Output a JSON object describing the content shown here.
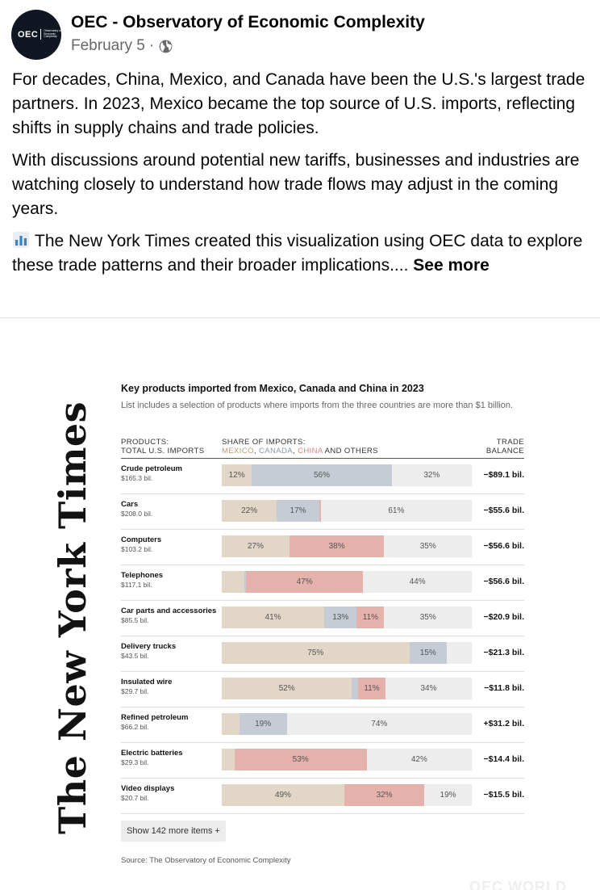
{
  "post": {
    "page_name": "OEC - Observatory of Economic Complexity",
    "date": "February 5",
    "separator": "·",
    "avatar_logo": "OEC",
    "avatar_tagline": "Observatory of Economic Complexity",
    "paragraphs": [
      "For decades, China, Mexico, and Canada have been the U.S.'s largest trade partners. In 2023, Mexico became the top source of U.S. imports, reflecting shifts in supply chains and trade policies.",
      "With discussions around potential new tariffs, businesses and industries are watching closely to understand how trade flows may adjust in the coming years."
    ],
    "third_paragraph": "The New York Times created this visualization using OEC data to explore these trade patterns and their broader implications....",
    "see_more": "See more",
    "icons": {
      "audience": "globe-icon",
      "emoji": "bar-chart-emoji-icon"
    }
  },
  "image": {
    "masthead": "The New York Times",
    "watermark": "OEC WORLD",
    "chart_title": "Key products imported from Mexico, Canada and China in 2023",
    "chart_subtitle": "List includes a selection of products where imports from the three countries are more than $1 billion.",
    "head_products_1": "PRODUCTS:",
    "head_products_2": "TOTAL U.S. IMPORTS",
    "head_share_1": "SHARE OF IMPORTS:",
    "legend_mexico": "MEXICO",
    "legend_comma1": ", ",
    "legend_canada": "CANADA",
    "legend_comma2": ", ",
    "legend_china": "CHINA",
    "legend_others": " AND OTHERS",
    "head_balance_1": "TRADE",
    "head_balance_2": "BALANCE",
    "show_more": "Show 142 more items +",
    "source": "Source: The Observatory of Economic Complexity"
  },
  "colors": {
    "mexico": "#e2d6c6",
    "canada": "#c5ccd5",
    "china": "#e5b1ab",
    "others": "#ededed"
  },
  "chart_data": {
    "type": "bar",
    "stacked": true,
    "series_order": [
      "Mexico",
      "Canada",
      "China",
      "Others"
    ],
    "rows": [
      {
        "name": "Crude petroleum",
        "total": "$165.3 bil.",
        "shares": [
          12,
          56,
          0,
          32
        ],
        "labels": [
          "12%",
          "56%",
          "",
          "32%"
        ],
        "balance": "−$89.1 bil."
      },
      {
        "name": "Cars",
        "total": "$208.0 bil.",
        "shares": [
          22,
          17,
          0.6,
          60.4
        ],
        "labels": [
          "22%",
          "17%",
          "",
          "61%"
        ],
        "balance": "−$55.6 bil."
      },
      {
        "name": "Computers",
        "total": "$103.2 bil.",
        "shares": [
          27,
          0,
          38,
          35
        ],
        "labels": [
          "27%",
          "",
          "38%",
          "35%"
        ],
        "balance": "−$56.6 bil."
      },
      {
        "name": "Telephones",
        "total": "$117.1 bil.",
        "shares": [
          9,
          0.6,
          47,
          43.4
        ],
        "labels": [
          "",
          "",
          "47%",
          "44%"
        ],
        "balance": "−$56.6 bil."
      },
      {
        "name": "Car parts and accessories",
        "total": "$85.5 bil.",
        "shares": [
          41,
          13,
          11,
          35
        ],
        "labels": [
          "41%",
          "13%",
          "11%",
          "35%"
        ],
        "balance": "−$20.9 bil."
      },
      {
        "name": "Delivery trucks",
        "total": "$43.5 bil.",
        "shares": [
          75,
          15,
          0,
          10
        ],
        "labels": [
          "75%",
          "15%",
          "",
          ""
        ],
        "balance": "−$21.3 bil."
      },
      {
        "name": "Insulated wire",
        "total": "$29.7 bil.",
        "shares": [
          52,
          2.5,
          11,
          34.5
        ],
        "labels": [
          "52%",
          "",
          "11%",
          "34%"
        ],
        "balance": "−$11.8 bil."
      },
      {
        "name": "Refined petroleum",
        "total": "$66.2 bil.",
        "shares": [
          7,
          19,
          0,
          74
        ],
        "labels": [
          "",
          "19%",
          "",
          "74%"
        ],
        "balance": "+$31.2 bil."
      },
      {
        "name": "Electric batteries",
        "total": "$29.3 bil.",
        "shares": [
          5,
          0,
          53,
          42
        ],
        "labels": [
          "",
          "",
          "53%",
          "42%"
        ],
        "balance": "−$14.4 bil."
      },
      {
        "name": "Video displays",
        "total": "$20.7 bil.",
        "shares": [
          49,
          0,
          32,
          19
        ],
        "labels": [
          "49%",
          "",
          "32%",
          "19%"
        ],
        "balance": "−$15.5 bil."
      }
    ]
  }
}
